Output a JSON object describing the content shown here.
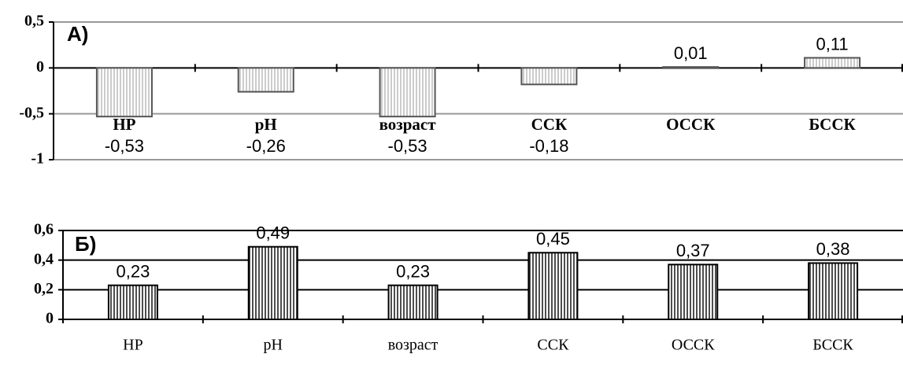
{
  "chart_data": [
    {
      "type": "bar",
      "title": "А)",
      "categories": [
        "НР",
        "рН",
        "возраст",
        "ССК",
        "ОССК",
        "БССК"
      ],
      "values": [
        -0.53,
        -0.26,
        -0.53,
        -0.18,
        0.01,
        0.11
      ],
      "value_labels": [
        "-0,53",
        "-0,26",
        "-0,53",
        "-0,18",
        "0,01",
        "0,11"
      ],
      "ylim": [
        -1,
        0.5
      ],
      "yticks": [
        {
          "value": -1,
          "label": "-1"
        },
        {
          "value": -0.5,
          "label": "-0,5"
        },
        0,
        {
          "value": 0.5,
          "label": "0,5"
        }
      ],
      "grid": true,
      "color": "#ffffff"
    },
    {
      "type": "bar",
      "title": "Б)",
      "categories": [
        "НР",
        "рН",
        "возраст",
        "ССК",
        "ОССК",
        "БССК"
      ],
      "values": [
        0.23,
        0.49,
        0.23,
        0.45,
        0.37,
        0.38
      ],
      "value_labels": [
        "0,23",
        "0,49",
        "0,23",
        "0,45",
        "0,37",
        "0,38"
      ],
      "ylim": [
        0,
        0.6
      ],
      "yticks": [
        0,
        {
          "value": 0.2,
          "label": "0,2"
        },
        {
          "value": 0.4,
          "label": "0,4"
        },
        {
          "value": 0.6,
          "label": "0,6"
        }
      ],
      "grid": true,
      "color": "#000000"
    }
  ]
}
